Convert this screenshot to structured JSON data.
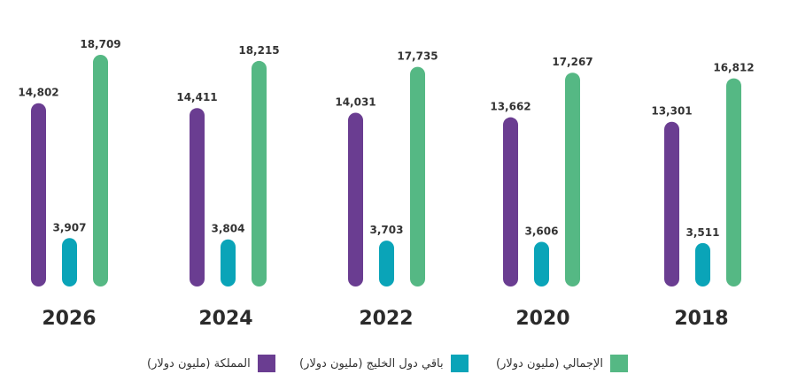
{
  "colors": {
    "kingdom": "#6a3d91",
    "gulf": "#0aa4b8",
    "total": "#55b884",
    "text": "#333333",
    "year_text": "#2b2b2b"
  },
  "legend": {
    "kingdom": "المملكة (مليون دولار)",
    "gulf": "باقي دول الخليج (مليون دولار)",
    "total": "الإجمالي (مليون دولار)"
  },
  "chart_data": {
    "type": "bar",
    "categories": [
      "2026",
      "2024",
      "2022",
      "2020",
      "2018"
    ],
    "series": [
      {
        "name": "المملكة (مليون دولار)",
        "values": [
          14802,
          14411,
          14031,
          13662,
          13301
        ],
        "labels": [
          "14,802",
          "14,411",
          "14,031",
          "13,662",
          "13,301"
        ]
      },
      {
        "name": "باقي دول الخليج (مليون دولار)",
        "values": [
          3907,
          3804,
          3703,
          3606,
          3511
        ],
        "labels": [
          "3,907",
          "3,804",
          "3,703",
          "3,606",
          "3,511"
        ]
      },
      {
        "name": "الإجمالي (مليون دولار)",
        "values": [
          18709,
          18215,
          17735,
          17267,
          16812
        ],
        "labels": [
          "18,709",
          "18,215",
          "17,735",
          "17,267",
          "16,812"
        ]
      }
    ],
    "legend_position": "bottom",
    "grid": false
  }
}
